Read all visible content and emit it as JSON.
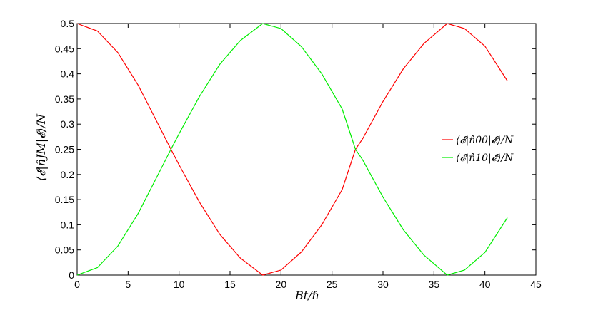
{
  "chart_data": {
    "type": "line",
    "xlabel": "Bt/ℏ",
    "ylabel": "⟨𝓔|n̂JM|𝓔⟩/N",
    "xlim": [
      0,
      45
    ],
    "ylim": [
      0,
      0.5
    ],
    "x_ticks": [
      "0",
      "5",
      "10",
      "15",
      "20",
      "25",
      "30",
      "35",
      "40",
      "45"
    ],
    "y_ticks": [
      "0",
      "0.05",
      "0.1",
      "0.15",
      "0.2",
      "0.25",
      "0.3",
      "0.35",
      "0.4",
      "0.45",
      "0.5"
    ],
    "grid": false,
    "legend_position": "right",
    "series": [
      {
        "name": "⟨𝓔|n̂00|𝓔⟩/N",
        "color": "#ff0000",
        "x": [
          0,
          2,
          4,
          6,
          8,
          9.2,
          10,
          12,
          14,
          16,
          18.2,
          20,
          22,
          24,
          26,
          27.3,
          28,
          30,
          32,
          34,
          36.3,
          38,
          40,
          42.2
        ],
        "y": [
          0.5,
          0.485,
          0.442,
          0.377,
          0.298,
          0.25,
          0.219,
          0.145,
          0.081,
          0.034,
          0.0,
          0.01,
          0.046,
          0.1,
          0.17,
          0.25,
          0.271,
          0.345,
          0.41,
          0.46,
          0.5,
          0.49,
          0.455,
          0.386
        ]
      },
      {
        "name": "⟨𝓔|n̂10|𝓔⟩/N",
        "color": "#00ee00",
        "x": [
          0,
          2,
          4,
          6,
          8,
          9.2,
          10,
          12,
          14,
          16,
          18.2,
          20,
          22,
          24,
          26,
          27.3,
          28,
          30,
          32,
          34,
          36.3,
          38,
          40,
          42.2
        ],
        "y": [
          0.0,
          0.015,
          0.058,
          0.123,
          0.202,
          0.25,
          0.281,
          0.355,
          0.419,
          0.466,
          0.5,
          0.49,
          0.454,
          0.4,
          0.33,
          0.25,
          0.229,
          0.155,
          0.09,
          0.04,
          0.0,
          0.01,
          0.045,
          0.114
        ]
      }
    ]
  }
}
